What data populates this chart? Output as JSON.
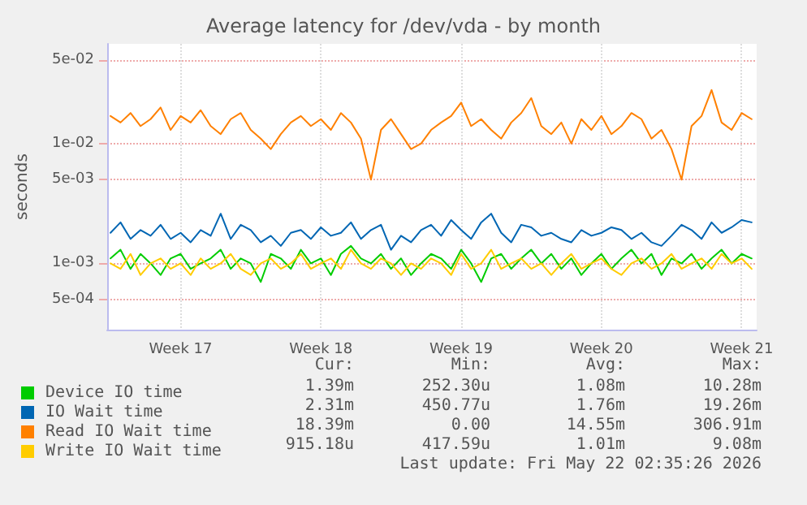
{
  "chart_data": {
    "type": "line",
    "title": "Average latency for /dev/vda - by month",
    "ylabel": "seconds",
    "x": [
      "2026-04-20T00:00",
      "2026-04-20T12:00",
      "2026-04-21T00:00",
      "2026-04-21T12:00",
      "2026-04-22T00:00",
      "2026-04-22T12:00",
      "2026-04-23T00:00",
      "2026-04-23T12:00",
      "2026-04-24T00:00",
      "2026-04-24T12:00",
      "2026-04-25T00:00",
      "2026-04-25T12:00",
      "2026-04-26T00:00",
      "2026-04-26T12:00",
      "2026-04-27T00:00",
      "2026-04-27T12:00",
      "2026-04-28T00:00",
      "2026-04-28T12:00",
      "2026-04-29T00:00",
      "2026-04-29T12:00",
      "2026-04-30T00:00",
      "2026-04-30T12:00",
      "2026-05-01T00:00",
      "2026-05-01T12:00",
      "2026-05-02T00:00",
      "2026-05-02T12:00",
      "2026-05-03T00:00",
      "2026-05-03T12:00",
      "2026-05-04T00:00",
      "2026-05-04T12:00",
      "2026-05-05T00:00",
      "2026-05-05T12:00",
      "2026-05-06T00:00",
      "2026-05-06T12:00",
      "2026-05-07T00:00",
      "2026-05-07T12:00",
      "2026-05-08T00:00",
      "2026-05-08T12:00",
      "2026-05-09T00:00",
      "2026-05-09T12:00",
      "2026-05-10T00:00",
      "2026-05-10T12:00",
      "2026-05-11T00:00",
      "2026-05-11T12:00",
      "2026-05-12T00:00",
      "2026-05-12T12:00",
      "2026-05-13T00:00",
      "2026-05-13T12:00",
      "2026-05-14T00:00",
      "2026-05-14T12:00",
      "2026-05-15T00:00",
      "2026-05-15T12:00",
      "2026-05-16T00:00",
      "2026-05-16T12:00",
      "2026-05-17T00:00",
      "2026-05-17T12:00",
      "2026-05-18T00:00",
      "2026-05-18T12:00",
      "2026-05-19T00:00",
      "2026-05-19T12:00",
      "2026-05-20T00:00",
      "2026-05-20T12:00",
      "2026-05-21T00:00",
      "2026-05-21T12:00",
      "2026-05-22T00:00"
    ],
    "series": [
      {
        "name": "Device IO time",
        "color": "#00cc00",
        "values": [
          0.0011,
          0.0013,
          0.0009,
          0.0012,
          0.001,
          0.0008,
          0.0011,
          0.0012,
          0.0009,
          0.001,
          0.0011,
          0.0013,
          0.0009,
          0.0011,
          0.001,
          0.0007,
          0.0012,
          0.0011,
          0.0009,
          0.0013,
          0.001,
          0.0011,
          0.0008,
          0.0012,
          0.0014,
          0.0011,
          0.001,
          0.0012,
          0.0009,
          0.0011,
          0.0008,
          0.001,
          0.0012,
          0.0011,
          0.0009,
          0.0013,
          0.001,
          0.0007,
          0.0011,
          0.0012,
          0.0009,
          0.0011,
          0.0013,
          0.001,
          0.0012,
          0.0009,
          0.0011,
          0.0008,
          0.001,
          0.0012,
          0.0009,
          0.0011,
          0.0013,
          0.001,
          0.0012,
          0.0008,
          0.0011,
          0.001,
          0.0012,
          0.0009,
          0.0011,
          0.0013,
          0.001,
          0.0012,
          0.0011
        ]
      },
      {
        "name": "IO Wait time",
        "color": "#0066b3",
        "values": [
          0.0018,
          0.0022,
          0.0016,
          0.0019,
          0.0017,
          0.0021,
          0.0016,
          0.0018,
          0.0015,
          0.0019,
          0.0017,
          0.0026,
          0.0016,
          0.0021,
          0.0019,
          0.0015,
          0.0017,
          0.0014,
          0.0018,
          0.0019,
          0.0016,
          0.002,
          0.0017,
          0.0018,
          0.0022,
          0.0016,
          0.0019,
          0.0021,
          0.0013,
          0.0017,
          0.0015,
          0.0019,
          0.0021,
          0.0017,
          0.0023,
          0.0019,
          0.0016,
          0.0022,
          0.0026,
          0.0018,
          0.0015,
          0.0021,
          0.002,
          0.0017,
          0.0018,
          0.0016,
          0.0015,
          0.0019,
          0.0017,
          0.0018,
          0.002,
          0.0019,
          0.0016,
          0.0018,
          0.0015,
          0.0014,
          0.0017,
          0.0021,
          0.0019,
          0.0016,
          0.0022,
          0.0018,
          0.002,
          0.0023,
          0.0022
        ]
      },
      {
        "name": "Read IO Wait time",
        "color": "#ff8000",
        "values": [
          0.017,
          0.015,
          0.018,
          0.014,
          0.016,
          0.02,
          0.013,
          0.017,
          0.015,
          0.019,
          0.014,
          0.012,
          0.016,
          0.018,
          0.013,
          0.011,
          0.009,
          0.012,
          0.015,
          0.017,
          0.014,
          0.016,
          0.013,
          0.018,
          0.015,
          0.011,
          0.005,
          0.013,
          0.016,
          0.012,
          0.009,
          0.01,
          0.013,
          0.015,
          0.017,
          0.022,
          0.014,
          0.016,
          0.013,
          0.011,
          0.015,
          0.018,
          0.024,
          0.014,
          0.012,
          0.015,
          0.01,
          0.016,
          0.013,
          0.017,
          0.012,
          0.014,
          0.018,
          0.016,
          0.011,
          0.013,
          0.009,
          0.005,
          0.014,
          0.017,
          0.028,
          0.015,
          0.013,
          0.018,
          0.016
        ]
      },
      {
        "name": "Write IO Wait time",
        "color": "#ffcc00",
        "values": [
          0.001,
          0.0009,
          0.0012,
          0.0008,
          0.001,
          0.0011,
          0.0009,
          0.001,
          0.0008,
          0.0011,
          0.0009,
          0.001,
          0.0012,
          0.0009,
          0.0008,
          0.001,
          0.0011,
          0.0009,
          0.001,
          0.0012,
          0.0009,
          0.001,
          0.0011,
          0.0009,
          0.0013,
          0.001,
          0.0009,
          0.0011,
          0.001,
          0.0008,
          0.001,
          0.0009,
          0.0011,
          0.001,
          0.0008,
          0.0012,
          0.0009,
          0.001,
          0.0013,
          0.0009,
          0.001,
          0.0011,
          0.0009,
          0.001,
          0.0008,
          0.001,
          0.0012,
          0.0009,
          0.001,
          0.0011,
          0.0009,
          0.0008,
          0.001,
          0.0011,
          0.0009,
          0.001,
          0.0012,
          0.0009,
          0.001,
          0.0011,
          0.0009,
          0.0012,
          0.001,
          0.0011,
          0.0009
        ]
      }
    ],
    "xlim": [
      "2026-04-19T20:00",
      "2026-05-22T06:00"
    ],
    "xticks": [
      {
        "value": "2026-04-23T12:00",
        "label": "Week 17"
      },
      {
        "value": "2026-04-30T12:00",
        "label": "Week 18"
      },
      {
        "value": "2026-05-07T12:00",
        "label": "Week 19"
      },
      {
        "value": "2026-05-14T12:00",
        "label": "Week 20"
      },
      {
        "value": "2026-05-21T12:00",
        "label": "Week 21"
      }
    ],
    "log": "y",
    "ylim": [
      0.00028,
      0.068
    ],
    "yticks": [
      {
        "value": 0.0005,
        "label": "5e-04"
      },
      {
        "value": 0.001,
        "label": "1e-03"
      },
      {
        "value": 0.005,
        "label": "5e-03"
      },
      {
        "value": 0.01,
        "label": "1e-02"
      },
      {
        "value": 0.05,
        "label": "5e-02"
      }
    ],
    "grid": true,
    "legend": "bottom",
    "marker": "none",
    "line_style": "solid",
    "annotations": [
      "Cur:",
      "Min:",
      "Avg:",
      "Max:",
      "1.39m",
      "252.30u",
      "1.08m",
      "10.28m",
      "2.31m",
      "450.77u",
      "1.76m",
      "19.26m",
      "18.39m",
      "0.00",
      "14.55m",
      "306.91m",
      "915.18u",
      "417.59u",
      "1.01m",
      "9.08m",
      "Last update: Fri May 22 02:35:26 2026"
    ]
  }
}
